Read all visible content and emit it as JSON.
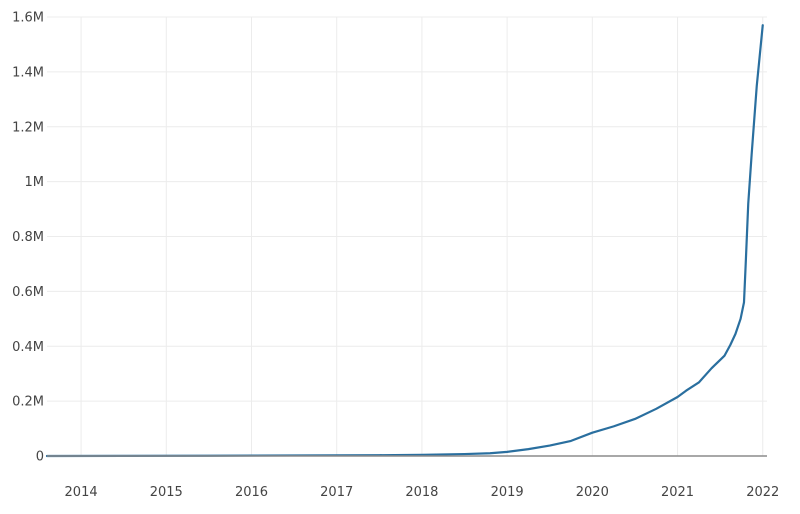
{
  "chart_data": {
    "type": "line",
    "title": "",
    "xlabel": "",
    "ylabel": "",
    "x_ticks": [
      2014,
      2015,
      2016,
      2017,
      2018,
      2019,
      2020,
      2021,
      2022
    ],
    "x_tick_labels": [
      "2014",
      "2015",
      "2016",
      "2017",
      "2018",
      "2019",
      "2020",
      "2021",
      "2022"
    ],
    "y_ticks": [
      0,
      200000,
      400000,
      600000,
      800000,
      1000000,
      1200000,
      1400000,
      1600000
    ],
    "y_tick_labels": [
      "0",
      "0.2M",
      "0.4M",
      "0.6M",
      "0.8M",
      "1M",
      "1.2M",
      "1.4M",
      "1.6M"
    ],
    "xlim": [
      2013.6,
      2022.05
    ],
    "ylim": [
      0,
      1600000
    ],
    "grid": true,
    "legend": "none",
    "series": [
      {
        "color": "#2a6f9f",
        "x": [
          2013.6,
          2014.5,
          2015.5,
          2016.5,
          2017.5,
          2018.0,
          2018.5,
          2018.8,
          2019.0,
          2019.25,
          2019.5,
          2019.75,
          2020.0,
          2020.25,
          2020.5,
          2020.75,
          2021.0,
          2021.1,
          2021.25,
          2021.4,
          2021.55,
          2021.62,
          2021.68,
          2021.74,
          2021.78,
          2021.8,
          2021.83,
          2021.87,
          2021.93,
          2022.0
        ],
        "y": [
          0,
          500,
          1000,
          2000,
          3000,
          4000,
          7000,
          10000,
          15000,
          25000,
          38000,
          55000,
          85000,
          108000,
          135000,
          172000,
          215000,
          238000,
          268000,
          320000,
          365000,
          405000,
          445000,
          500000,
          560000,
          700000,
          920000,
          1100000,
          1350000,
          1570000
        ]
      }
    ]
  }
}
